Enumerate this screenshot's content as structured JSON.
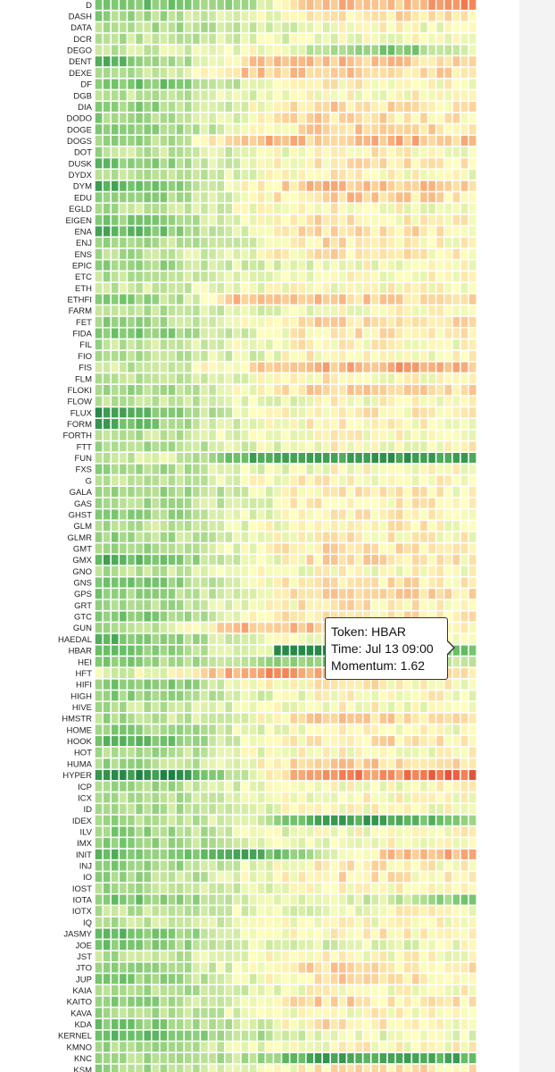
{
  "colors": {
    "strong_negative": "#a50026",
    "negative": "#f46d43",
    "neutral": "#ffffbf",
    "positive": "#66bd63",
    "strong_positive": "#006837"
  },
  "tooltip": {
    "token": "Token: HBAR",
    "time": "Time: Jul 13 09:00",
    "momentum": "Momentum: 1.62"
  },
  "chart_data": {
    "type": "heatmap",
    "title": "",
    "xlabel": "",
    "ylabel": "",
    "value_name": "Momentum",
    "value_range": [
      -2,
      2
    ],
    "color_scale": [
      "#a50026",
      "#f46d43",
      "#ffffbf",
      "#66bd63",
      "#006837"
    ],
    "hovered": {
      "token": "HBAR",
      "time": "Jul 13 09:00",
      "momentum": 1.62
    },
    "tokens": [
      "D",
      "DASH",
      "DATA",
      "DCR",
      "DEGO",
      "DENT",
      "DEXE",
      "DF",
      "DGB",
      "DIA",
      "DODO",
      "DOGE",
      "DOGS",
      "DOT",
      "DUSK",
      "DYDX",
      "DYM",
      "EDU",
      "EGLD",
      "EIGEN",
      "ENA",
      "ENJ",
      "ENS",
      "EPIC",
      "ETC",
      "ETH",
      "ETHFI",
      "FARM",
      "FET",
      "FIDA",
      "FIL",
      "FIO",
      "FIS",
      "FLM",
      "FLOKI",
      "FLOW",
      "FLUX",
      "FORM",
      "FORTH",
      "FTT",
      "FUN",
      "FXS",
      "G",
      "GALA",
      "GAS",
      "GHST",
      "GLM",
      "GLMR",
      "GMT",
      "GMX",
      "GNO",
      "GNS",
      "GPS",
      "GRT",
      "GTC",
      "GUN",
      "HAEDAL",
      "HBAR",
      "HEI",
      "HFT",
      "HIFI",
      "HIGH",
      "HIVE",
      "HMSTR",
      "HOME",
      "HOOK",
      "HOT",
      "HUMA",
      "HYPER",
      "ICP",
      "ICX",
      "ID",
      "IDEX",
      "ILV",
      "IMX",
      "INIT",
      "INJ",
      "IO",
      "IOST",
      "IOTA",
      "IOTX",
      "IQ",
      "JASMY",
      "JOE",
      "JST",
      "JTO",
      "JUP",
      "KAIA",
      "KAITO",
      "KAVA",
      "KDA",
      "KERNEL",
      "KMNO",
      "KNC",
      "KSM"
    ],
    "n_columns": 47,
    "row_profiles": [
      [
        1.1,
        0.8,
        0.5,
        -0.6,
        -0.4,
        -0.9
      ],
      [
        0.7,
        0.5,
        0.2,
        -0.2,
        -0.2,
        -0.1
      ],
      [
        0.6,
        0.5,
        0.3,
        0.1,
        0.0,
        0.1
      ],
      [
        0.5,
        0.4,
        0.2,
        0.1,
        0.0,
        0.0
      ],
      [
        0.4,
        0.3,
        0.0,
        0.4,
        0.9,
        0.2
      ],
      [
        1.2,
        0.6,
        -0.3,
        -0.4,
        -0.4,
        -0.2
      ],
      [
        0.5,
        0.3,
        -0.4,
        -0.3,
        -0.3,
        -0.2
      ],
      [
        0.9,
        0.9,
        0.3,
        -0.1,
        -0.1,
        0.0
      ],
      [
        0.5,
        0.4,
        0.2,
        0.0,
        0.0,
        -0.1
      ],
      [
        0.8,
        0.6,
        0.1,
        -0.3,
        -0.2,
        -0.1
      ],
      [
        0.7,
        0.5,
        0.1,
        -0.3,
        -0.2,
        -0.1
      ],
      [
        0.7,
        0.6,
        0.1,
        -0.3,
        -0.3,
        -0.2
      ],
      [
        0.7,
        0.5,
        -0.5,
        -0.4,
        -0.5,
        -0.4
      ],
      [
        0.5,
        0.4,
        0.2,
        -0.1,
        -0.1,
        0.0
      ],
      [
        1.0,
        0.6,
        0.1,
        -0.1,
        -0.2,
        -0.1
      ],
      [
        0.5,
        0.4,
        0.1,
        -0.1,
        0.0,
        0.0
      ],
      [
        1.2,
        0.8,
        0.0,
        -0.5,
        -0.4,
        -0.3
      ],
      [
        0.8,
        0.6,
        0.1,
        -0.4,
        -0.3,
        -0.2
      ],
      [
        0.5,
        0.4,
        0.1,
        -0.1,
        0.0,
        0.1
      ],
      [
        0.9,
        0.6,
        0.1,
        -0.2,
        -0.1,
        -0.1
      ],
      [
        1.2,
        0.8,
        0.1,
        -0.3,
        -0.2,
        -0.1
      ],
      [
        0.6,
        0.5,
        0.2,
        -0.2,
        -0.1,
        0.0
      ],
      [
        0.6,
        0.4,
        0.1,
        -0.2,
        -0.1,
        -0.1
      ],
      [
        0.8,
        0.6,
        0.2,
        0.1,
        0.0,
        0.0
      ],
      [
        0.5,
        0.4,
        0.2,
        0.0,
        0.0,
        0.0
      ],
      [
        0.4,
        0.3,
        0.1,
        0.0,
        0.0,
        0.0
      ],
      [
        0.8,
        0.5,
        -0.5,
        -0.4,
        -0.3,
        -0.3
      ],
      [
        0.6,
        0.4,
        0.2,
        0.1,
        0.0,
        0.0
      ],
      [
        0.7,
        0.5,
        0.0,
        -0.3,
        -0.3,
        -0.3
      ],
      [
        0.9,
        0.7,
        0.2,
        -0.2,
        -0.1,
        -0.1
      ],
      [
        0.5,
        0.4,
        0.1,
        -0.1,
        0.0,
        0.0
      ],
      [
        0.5,
        0.4,
        0.2,
        -0.1,
        0.0,
        0.0
      ],
      [
        0.4,
        0.3,
        -0.2,
        -0.5,
        -0.6,
        -0.5
      ],
      [
        0.6,
        0.4,
        0.1,
        -0.1,
        0.0,
        0.0
      ],
      [
        0.7,
        0.5,
        0.0,
        -0.3,
        -0.2,
        -0.2
      ],
      [
        0.5,
        0.4,
        0.2,
        0.0,
        0.0,
        0.0
      ],
      [
        1.4,
        0.7,
        0.2,
        -0.1,
        -0.1,
        0.0
      ],
      [
        1.3,
        0.6,
        0.1,
        -0.1,
        0.0,
        0.0
      ],
      [
        0.5,
        0.4,
        0.1,
        0.0,
        0.0,
        0.0
      ],
      [
        0.6,
        0.5,
        0.2,
        0.0,
        0.0,
        0.0
      ],
      [
        0.4,
        0.3,
        1.2,
        1.4,
        1.4,
        1.2
      ],
      [
        0.6,
        0.5,
        0.2,
        0.0,
        0.0,
        0.0
      ],
      [
        0.5,
        0.4,
        0.1,
        -0.1,
        0.0,
        0.0
      ],
      [
        0.8,
        0.6,
        0.2,
        -0.1,
        -0.1,
        0.0
      ],
      [
        0.6,
        0.5,
        0.3,
        -0.2,
        -0.1,
        0.0
      ],
      [
        0.7,
        0.6,
        0.2,
        -0.1,
        -0.1,
        0.0
      ],
      [
        0.6,
        0.4,
        0.1,
        -0.1,
        -0.1,
        0.0
      ],
      [
        0.7,
        0.5,
        0.2,
        -0.1,
        -0.1,
        0.0
      ],
      [
        0.7,
        0.5,
        0.1,
        -0.2,
        -0.2,
        -0.1
      ],
      [
        1.2,
        0.8,
        0.2,
        -0.2,
        -0.2,
        -0.1
      ],
      [
        0.5,
        0.4,
        0.1,
        0.0,
        0.0,
        0.0
      ],
      [
        1.0,
        0.7,
        0.1,
        -0.2,
        -0.2,
        -0.1
      ],
      [
        0.8,
        0.6,
        0.1,
        -0.4,
        -0.3,
        -0.2
      ],
      [
        0.7,
        0.5,
        0.1,
        -0.2,
        -0.1,
        -0.1
      ],
      [
        0.9,
        0.7,
        0.1,
        -0.3,
        -0.2,
        -0.1
      ],
      [
        0.5,
        0.3,
        -0.5,
        -0.4,
        -0.2,
        -0.1
      ],
      [
        1.2,
        0.7,
        0.1,
        0.0,
        0.0,
        0.0
      ],
      [
        1.1,
        0.6,
        0.2,
        0.4,
        0.3,
        1.0
      ],
      [
        0.9,
        0.6,
        0.5,
        0.8,
        0.5,
        0.3
      ],
      [
        0.2,
        0.1,
        -0.8,
        -0.5,
        -0.3,
        -0.2
      ],
      [
        0.8,
        0.8,
        0.1,
        -0.1,
        -0.1,
        0.0
      ],
      [
        0.8,
        0.6,
        0.2,
        0.0,
        0.0,
        0.0
      ],
      [
        0.5,
        0.4,
        0.1,
        0.0,
        0.0,
        0.0
      ],
      [
        0.6,
        0.4,
        0.1,
        -0.4,
        -0.3,
        -0.2
      ],
      [
        0.8,
        0.6,
        0.2,
        -0.1,
        0.0,
        0.1
      ],
      [
        1.1,
        0.9,
        0.1,
        -0.2,
        -0.2,
        -0.1
      ],
      [
        0.6,
        0.5,
        0.1,
        0.0,
        0.0,
        0.0
      ],
      [
        0.6,
        0.5,
        0.1,
        -0.4,
        -0.3,
        -0.3
      ],
      [
        1.5,
        1.5,
        0.3,
        -0.9,
        -0.8,
        -1.1
      ],
      [
        0.6,
        0.5,
        0.2,
        0.0,
        0.0,
        0.0
      ],
      [
        0.6,
        0.5,
        0.2,
        0.0,
        0.0,
        0.0
      ],
      [
        0.6,
        0.5,
        0.2,
        0.0,
        0.0,
        0.0
      ],
      [
        0.7,
        0.5,
        0.1,
        1.3,
        1.3,
        0.6
      ],
      [
        0.8,
        0.6,
        0.2,
        0.1,
        0.0,
        0.0
      ],
      [
        0.8,
        0.6,
        0.3,
        0.1,
        0.0,
        0.0
      ],
      [
        1.1,
        0.7,
        1.2,
        0.5,
        -0.4,
        -0.6
      ],
      [
        0.9,
        0.6,
        0.2,
        -0.1,
        -0.1,
        0.0
      ],
      [
        0.7,
        0.5,
        0.1,
        -0.2,
        -0.1,
        0.0
      ],
      [
        0.6,
        0.5,
        0.2,
        0.0,
        0.0,
        0.0
      ],
      [
        0.9,
        0.8,
        0.3,
        0.2,
        0.3,
        0.9
      ],
      [
        0.5,
        0.4,
        0.2,
        0.1,
        0.0,
        0.0
      ],
      [
        0.5,
        0.4,
        0.2,
        0.0,
        0.0,
        0.0
      ],
      [
        1.2,
        0.8,
        0.2,
        -0.1,
        -0.1,
        0.0
      ],
      [
        1.0,
        0.7,
        0.2,
        0.3,
        0.2,
        0.1
      ],
      [
        0.5,
        0.4,
        0.1,
        0.0,
        0.0,
        0.0
      ],
      [
        0.7,
        0.5,
        0.1,
        -0.3,
        -0.2,
        -0.1
      ],
      [
        0.9,
        0.6,
        0.2,
        -0.3,
        -0.2,
        -0.1
      ],
      [
        0.6,
        0.5,
        0.2,
        0.0,
        0.0,
        0.0
      ],
      [
        0.7,
        0.6,
        0.1,
        -0.3,
        -0.2,
        -0.1
      ],
      [
        0.6,
        0.5,
        0.2,
        0.0,
        0.0,
        0.0
      ],
      [
        0.9,
        0.7,
        0.3,
        -0.2,
        -0.1,
        0.0
      ],
      [
        1.1,
        0.8,
        0.5,
        0.2,
        0.1,
        0.1
      ],
      [
        0.6,
        0.5,
        0.2,
        0.0,
        0.0,
        0.0
      ],
      [
        0.6,
        0.5,
        0.5,
        1.3,
        1.3,
        1.2
      ],
      [
        0.7,
        0.5,
        0.2,
        -0.2,
        -0.2,
        -0.1
      ]
    ]
  }
}
